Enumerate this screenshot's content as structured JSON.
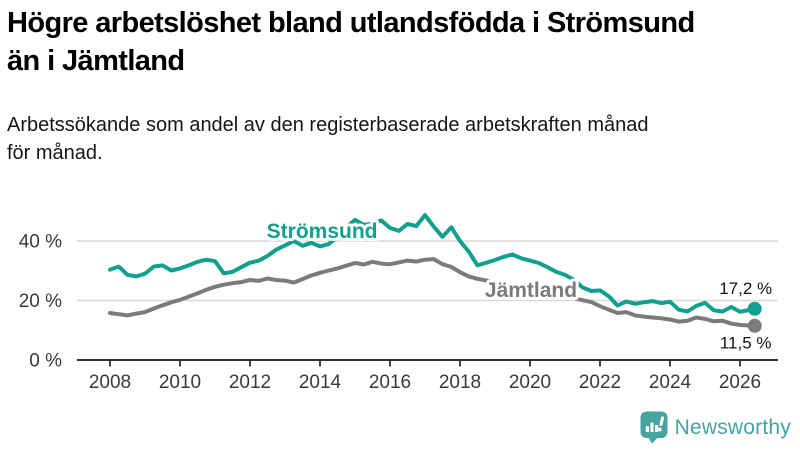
{
  "header": {
    "title_line1": "Högre arbetslöshet bland utlandsfödda i Strömsund",
    "title_line2": "än i Jämtland",
    "subtitle_line1": "Arbetssökande som andel av den registerbaserade arbetskraften månad",
    "subtitle_line2": "för månad."
  },
  "branding": {
    "logo_text": "Newsworthy",
    "logo_icon": "bar-chart-speech-bubble-icon",
    "logo_color": "#46a3a0"
  },
  "chart_data": {
    "type": "line",
    "x_unit": "year",
    "x": [
      2008,
      2008.25,
      2008.5,
      2008.75,
      2009,
      2009.25,
      2009.5,
      2009.75,
      2010,
      2010.25,
      2010.5,
      2010.75,
      2011,
      2011.25,
      2011.5,
      2011.75,
      2012,
      2012.25,
      2012.5,
      2012.75,
      2013,
      2013.25,
      2013.5,
      2013.75,
      2014,
      2014.25,
      2014.5,
      2014.75,
      2015,
      2015.25,
      2015.5,
      2015.75,
      2016,
      2016.25,
      2016.5,
      2016.75,
      2017,
      2017.25,
      2017.5,
      2017.75,
      2018,
      2018.25,
      2018.5,
      2018.75,
      2019,
      2019.25,
      2019.5,
      2019.75,
      2020,
      2020.25,
      2020.5,
      2020.75,
      2021,
      2021.25,
      2021.5,
      2021.75,
      2022,
      2022.25,
      2022.5,
      2022.75,
      2023,
      2023.25,
      2023.5,
      2023.75,
      2024,
      2024.25,
      2024.5,
      2024.75,
      2025,
      2025.25,
      2025.5,
      2025.75,
      2026,
      2026.25,
      2026.42
    ],
    "series": [
      {
        "id": "stromsund",
        "name": "Strömsund",
        "color": "#10a08d",
        "end_label": "17,2 %",
        "end_label_side": "above",
        "label_anchor_year": 2014.06,
        "label_anchor_value": 41.0,
        "values": [
          30.4,
          31.4,
          28.6,
          28.1,
          29.0,
          31.4,
          31.8,
          30.1,
          30.8,
          31.8,
          33.0,
          33.7,
          33.2,
          29.1,
          29.6,
          31.2,
          32.7,
          33.4,
          35.0,
          37.1,
          38.5,
          40.0,
          38.4,
          39.4,
          38.2,
          39.0,
          41.4,
          44.6,
          47.1,
          45.4,
          45.8,
          46.9,
          44.4,
          43.4,
          45.7,
          45.0,
          48.7,
          44.8,
          41.4,
          44.6,
          40.0,
          36.4,
          31.8,
          32.7,
          33.6,
          34.7,
          35.5,
          34.2,
          33.4,
          32.6,
          31.2,
          29.6,
          28.6,
          27.0,
          24.4,
          23.2,
          23.4,
          21.4,
          18.3,
          19.7,
          18.9,
          19.4,
          19.8,
          19.1,
          19.6,
          16.9,
          16.3,
          18.2,
          19.2,
          16.7,
          16.3,
          17.8,
          16.2,
          16.8,
          17.2
        ]
      },
      {
        "id": "jamtland",
        "name": "Jämtland",
        "color": "#7b7b7b",
        "end_label": "11,5 %",
        "end_label_side": "below",
        "label_anchor_year": 2020.03,
        "label_anchor_value": 21.2,
        "values": [
          15.8,
          15.4,
          15.0,
          15.6,
          16.1,
          17.3,
          18.4,
          19.4,
          20.2,
          21.3,
          22.4,
          23.6,
          24.6,
          25.3,
          25.8,
          26.2,
          26.9,
          26.6,
          27.4,
          26.9,
          26.7,
          26.0,
          27.2,
          28.4,
          29.3,
          30.1,
          30.8,
          31.7,
          32.6,
          32.1,
          33.0,
          32.4,
          32.2,
          32.8,
          33.4,
          33.1,
          33.7,
          33.9,
          32.2,
          31.3,
          29.5,
          28.1,
          27.3,
          26.7,
          26.1,
          25.5,
          25.0,
          24.6,
          24.2,
          24.5,
          23.7,
          22.7,
          21.7,
          20.8,
          20.1,
          19.5,
          18.1,
          16.9,
          15.8,
          16.1,
          15.0,
          14.6,
          14.3,
          14.0,
          13.6,
          12.9,
          13.2,
          14.3,
          13.8,
          13.0,
          13.2,
          12.2,
          11.8,
          11.6,
          11.5
        ]
      }
    ],
    "x_ticks": [
      2008,
      2010,
      2012,
      2014,
      2016,
      2018,
      2020,
      2022,
      2024,
      2026
    ],
    "x_tick_labels": [
      "2008",
      "2010",
      "2012",
      "2014",
      "2016",
      "2018",
      "2020",
      "2022",
      "2024",
      "2026"
    ],
    "y_ticks": [
      0,
      20,
      40
    ],
    "y_tick_labels": [
      "0 %",
      "20 %",
      "40 %"
    ],
    "ylim": [
      0,
      52
    ],
    "xlim": [
      2007.06,
      2027.09
    ],
    "grid": "horizontal",
    "legend": "inline-labels"
  }
}
